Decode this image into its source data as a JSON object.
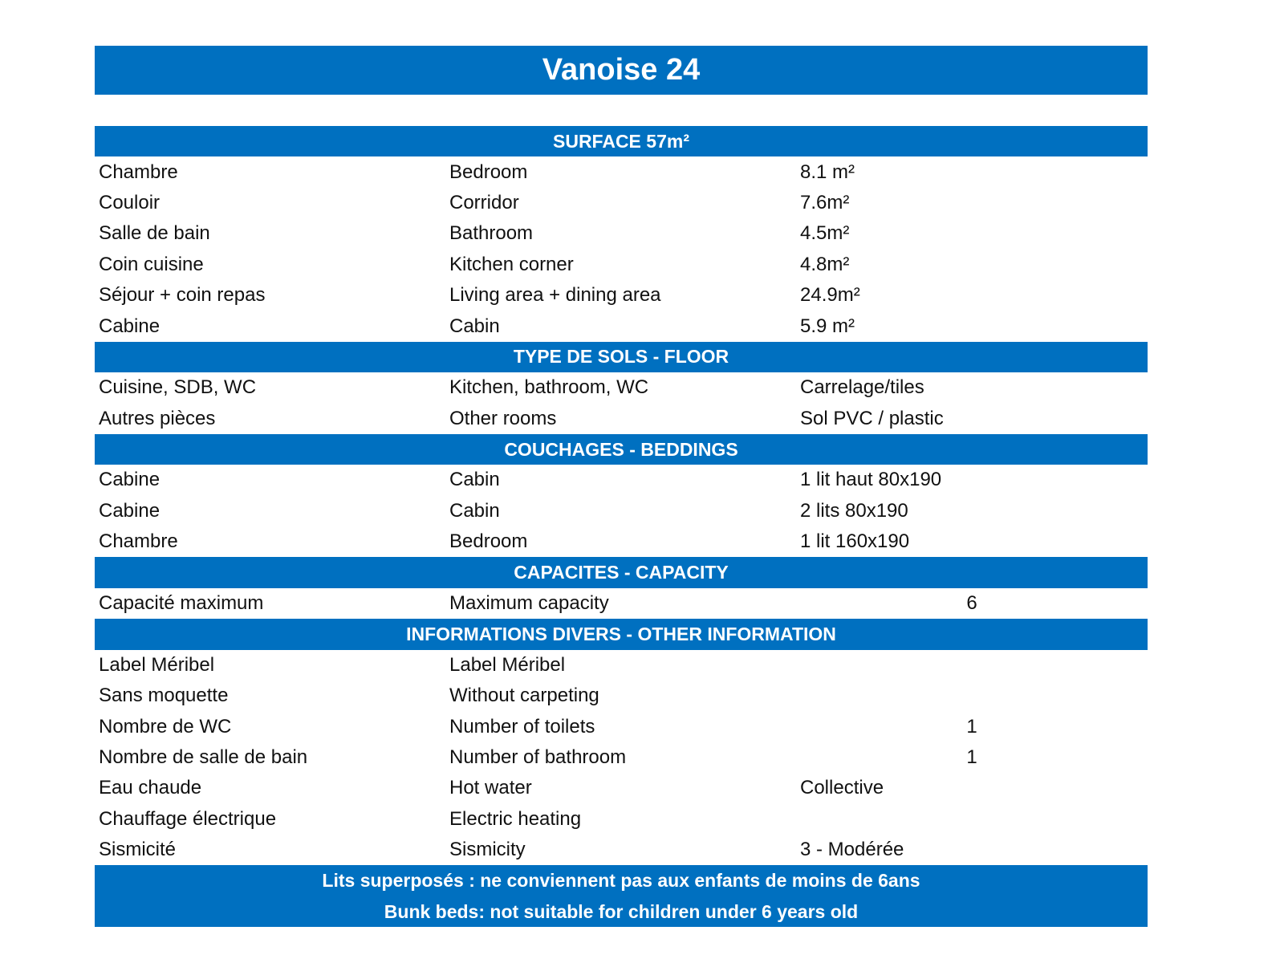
{
  "title": "Vanoise 24",
  "sections": [
    {
      "header": "SURFACE 57m²",
      "rows": [
        {
          "fr": "Chambre",
          "en": "Bedroom",
          "value": "8.1 m²"
        },
        {
          "fr": "Couloir",
          "en": "Corridor",
          "value": "7.6m²"
        },
        {
          "fr": "Salle de bain",
          "en": "Bathroom",
          "value": "4.5m²"
        },
        {
          "fr": "Coin cuisine",
          "en": "Kitchen corner",
          "value": "4.8m²"
        },
        {
          "fr": "Séjour + coin repas",
          "en": "Living area + dining area",
          "value": "24.9m²"
        },
        {
          "fr": "Cabine",
          "en": "Cabin",
          "value": "5.9 m²"
        }
      ]
    },
    {
      "header": "TYPE DE SOLS - FLOOR",
      "rows": [
        {
          "fr": "Cuisine, SDB, WC",
          "en": "Kitchen, bathroom, WC",
          "value": "Carrelage/tiles"
        },
        {
          "fr": "Autres pièces",
          "en": "Other rooms",
          "value": "Sol PVC / plastic"
        }
      ]
    },
    {
      "header": "COUCHAGES - BEDDINGS",
      "rows": [
        {
          "fr": "Cabine",
          "en": "Cabin",
          "value": "1 lit haut 80x190"
        },
        {
          "fr": "Cabine",
          "en": "Cabin",
          "value": "2 lits 80x190"
        },
        {
          "fr": "Chambre",
          "en": "Bedroom",
          "value": "1 lit 160x190"
        }
      ]
    },
    {
      "header": "CAPACITES - CAPACITY",
      "rows": [
        {
          "fr": "Capacité maximum",
          "en": "Maximum capacity",
          "value": "6",
          "numeric": true
        }
      ]
    },
    {
      "header": "INFORMATIONS DIVERS - OTHER INFORMATION",
      "rows": [
        {
          "fr": "Label Méribel",
          "en": "Label Méribel",
          "value": ""
        },
        {
          "fr": "Sans moquette",
          "en": "Without carpeting",
          "value": ""
        },
        {
          "fr": "Nombre de WC",
          "en": "Number of toilets",
          "value": "1",
          "numeric": true
        },
        {
          "fr": "Nombre de salle de bain",
          "en": "Number of bathroom",
          "value": "1",
          "numeric": true
        },
        {
          "fr": "Eau chaude",
          "en": "Hot water",
          "value": "Collective"
        },
        {
          "fr": "Chauffage électrique",
          "en": "Electric heating",
          "value": ""
        },
        {
          "fr": "Sismicité",
          "en": "Sismicity",
          "value": "3 - Modérée"
        }
      ]
    }
  ],
  "footer": {
    "fr": "Lits superposés : ne conviennent pas aux enfants de moins de 6ans",
    "en": "Bunk beds: not suitable for children under 6 years old"
  },
  "colors": {
    "accent": "#0070C0"
  }
}
